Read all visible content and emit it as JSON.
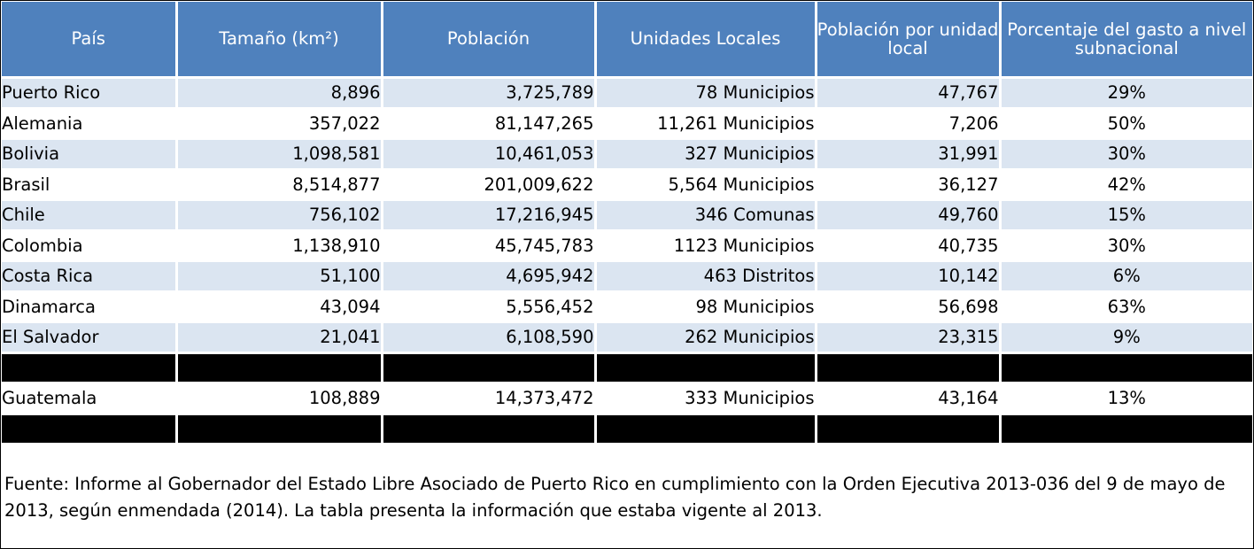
{
  "table": {
    "headers": [
      "País",
      "Tamaño (km²)",
      "Población",
      "Unidades Locales",
      "Población por unidad local",
      "Porcentaje del gasto a nivel subnacional"
    ],
    "rows": [
      [
        "Puerto Rico",
        "8,896",
        "3,725,789",
        "78 Municipios",
        "47,767",
        "29%"
      ],
      [
        "Alemania",
        "357,022",
        "81,147,265",
        "11,261 Municipios",
        "7,206",
        "50%"
      ],
      [
        "Bolivia",
        "1,098,581",
        "10,461,053",
        "327 Municipios",
        "31,991",
        "30%"
      ],
      [
        "Brasil",
        "8,514,877",
        "201,009,622",
        "5,564 Municipios",
        "36,127",
        "42%"
      ],
      [
        "Chile",
        "756,102",
        "17,216,945",
        "346 Comunas",
        "49,760",
        "15%"
      ],
      [
        "Colombia",
        "1,138,910",
        "45,745,783",
        "1123 Municipios",
        "40,735",
        "30%"
      ],
      [
        "Costa Rica",
        "51,100",
        "4,695,942",
        "463 Distritos",
        "10,142",
        "6%"
      ],
      [
        "Dinamarca",
        "43,094",
        "5,556,452",
        "98 Municipios",
        "56,698",
        "63%"
      ],
      [
        "El Salvador",
        "21,041",
        "6,108,590",
        "262 Municipios",
        "23,315",
        "9%"
      ],
      [
        "",
        "",
        "",
        "",
        "",
        ""
      ],
      [
        "Guatemala",
        "108,889",
        "14,373,472",
        "333 Municipios",
        "43,164",
        "13%"
      ],
      [
        "",
        "",
        "",
        "",
        "",
        ""
      ]
    ]
  },
  "source_note": "Fuente: Informe al Gobernador del Estado Libre Asociado de Puerto Rico en cumplimiento con la Orden Ejecutiva 2013-036 del 9 de mayo de 2013, según enmendada (2014). La tabla presenta la información que estaba vigente al 2013."
}
